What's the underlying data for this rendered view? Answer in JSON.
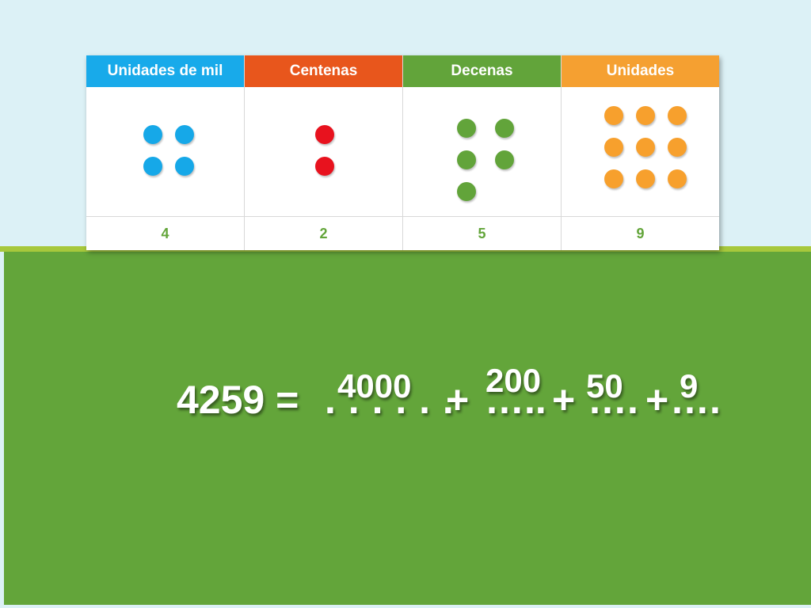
{
  "colors": {
    "sky": "#dcf1f6",
    "board": "#63a53a",
    "ground_line": "#a7c83c",
    "thousands": "#16a8e8",
    "hundreds": "#e8121e",
    "tens": "#62a43a",
    "units": "#f7a02d",
    "thousands_header": "#18aaea",
    "hundreds_header": "#e8561c",
    "tens_header": "#62a43a",
    "units_header": "#f5a031"
  },
  "table": {
    "columns": [
      {
        "header": "Unidades de mil",
        "value": "4",
        "dot_count": 4,
        "dot_color_key": "thousands",
        "header_color_key": "thousands_header"
      },
      {
        "header": "Centenas",
        "value": "2",
        "dot_count": 2,
        "dot_color_key": "hundreds",
        "header_color_key": "hundreds_header"
      },
      {
        "header": "Decenas",
        "value": "5",
        "dot_count": 5,
        "dot_color_key": "tens",
        "header_color_key": "tens_header"
      },
      {
        "header": "Unidades",
        "value": "9",
        "dot_count": 9,
        "dot_color_key": "units",
        "header_color_key": "units_header"
      }
    ]
  },
  "equation": {
    "lhs": "4259 =",
    "blank1": ". . . . . .",
    "plus1": "+",
    "blank2": "…..",
    "plus2": "+",
    "blank3": "….",
    "plus3": "+",
    "blank4": "….",
    "answers": [
      "4000",
      "200",
      "50",
      "9"
    ]
  }
}
